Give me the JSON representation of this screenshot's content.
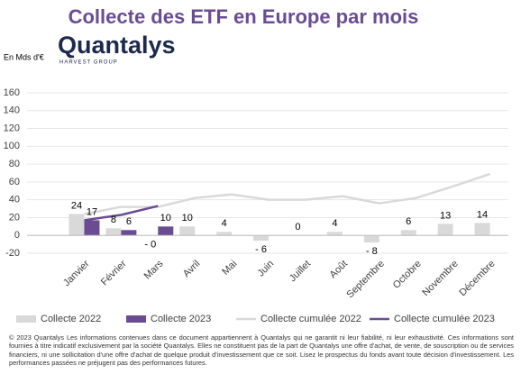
{
  "brand": {
    "name": "Quantalys",
    "tagline": "HARVEST GROUP"
  },
  "chart_data": {
    "type": "bar",
    "title": "Collecte des ETF en Europe par mois",
    "y_label": "En Mds d'€",
    "categories": [
      "Janvier",
      "Février",
      "Mars",
      "Avril",
      "Mai",
      "Juin",
      "Juillet",
      "Août",
      "Septembre",
      "Octobre",
      "Novembre",
      "Décembre"
    ],
    "series": [
      {
        "name": "Collecte 2022",
        "kind": "bar",
        "color": "#d9d9d9",
        "values": [
          24,
          8,
          -0.3,
          10,
          4,
          -6,
          0,
          4,
          -8,
          6,
          13,
          14
        ],
        "value_labels": [
          "24",
          "8",
          "- 0",
          "10",
          "4",
          "- 6",
          "0",
          "4",
          "- 8",
          "6",
          "13",
          "14"
        ]
      },
      {
        "name": "Collecte 2023",
        "kind": "bar",
        "color": "#6a4c93",
        "values": [
          17,
          6,
          10,
          null,
          null,
          null,
          null,
          null,
          null,
          null,
          null,
          null
        ]
      },
      {
        "name": "Collecte cumulée 2022",
        "kind": "line",
        "color": "#d9d9d9",
        "values": [
          24,
          32,
          32,
          42,
          46,
          40,
          40,
          44,
          36,
          42,
          55,
          69
        ]
      },
      {
        "name": "Collecte cumulée 2023",
        "kind": "line",
        "color": "#6a4c93",
        "values": [
          17,
          23,
          33,
          null,
          null,
          null,
          null,
          null,
          null,
          null,
          null,
          null
        ]
      }
    ],
    "ylim": [
      -20,
      160
    ],
    "yticks": [
      -20,
      0,
      20,
      40,
      60,
      80,
      100,
      120,
      140,
      160
    ],
    "grid": true
  },
  "footer": "© 2023 Quantalys Les informations contenues dans ce document appartiennent à Quantalys qui ne garantit ni leur fiabilité, ni leur exhaustivité. Ces informations sont fournies à titre indicatif exclusivement par la société Quantalys. Elles ne constituent pas de la part de Quantalys une offre d'achat, de vente, de souscription ou de services financiers, ni une sollicitation d'une offre d'achat de quelque produit d'investissement que ce soit. Lisez le prospectus du fonds avant toute décision d'investissement. Les performances passées ne préjugent pas des performances futures."
}
